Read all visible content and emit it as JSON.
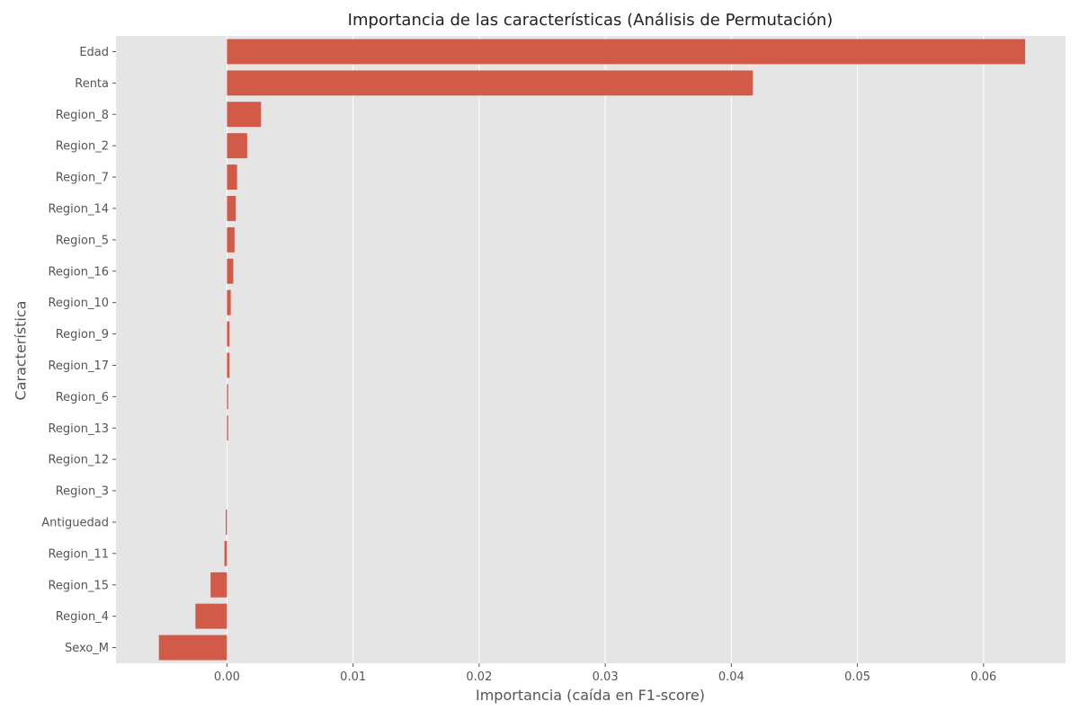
{
  "chart_data": {
    "type": "bar",
    "orientation": "horizontal",
    "title": "Importancia de las características (Análisis de Permutación)",
    "xlabel": "Importancia (caída en F1-score)",
    "ylabel": "Característica",
    "xlim": [
      -0.0088,
      0.0665
    ],
    "xticks": [
      0.0,
      0.01,
      0.02,
      0.03,
      0.04,
      0.05,
      0.06
    ],
    "xtick_labels": [
      "0.00",
      "0.01",
      "0.02",
      "0.03",
      "0.04",
      "0.05",
      "0.06"
    ],
    "grid": true,
    "bar_color": "#d15a48",
    "background_color": "#e5e5e5",
    "categories": [
      "Edad",
      "Renta",
      "Region_8",
      "Region_2",
      "Region_7",
      "Region_14",
      "Region_5",
      "Region_16",
      "Region_10",
      "Region_9",
      "Region_17",
      "Region_6",
      "Region_13",
      "Region_12",
      "Region_3",
      "Antiguedad",
      "Region_11",
      "Region_15",
      "Region_4",
      "Sexo_M"
    ],
    "values": [
      0.0633,
      0.0417,
      0.0027,
      0.0016,
      0.0008,
      0.0007,
      0.0006,
      0.0005,
      0.0003,
      0.0002,
      0.0002,
      0.0001,
      0.0001,
      0.0,
      0.0,
      -0.0001,
      -0.0002,
      -0.0013,
      -0.0025,
      -0.0054
    ]
  }
}
